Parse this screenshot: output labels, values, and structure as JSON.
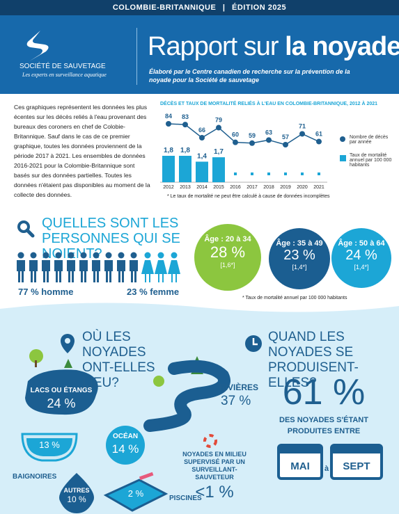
{
  "header": {
    "region": "COLOMBIE-BRITANNIQUE",
    "edition": "ÉDITION 2025"
  },
  "brand": {
    "name": "SOCIÉTÉ DE SAUVETAGE",
    "tagline": "Les experts en surveillance aquatique"
  },
  "title": {
    "lead": "Rapport sur",
    "emphasis": "la noyade",
    "subtitle": "Élaboré par le Centre canadien de recherche sur la prévention de la noyade pour la Société de sauvetage"
  },
  "intro": "Ces graphiques représentent les données les plus écentes sur les décès reliés à l'eau provenant des bureaux des coroners en chef de Colobie-Britannique. Sauf dans le cas de ce premier graphique, toutes les données proviennent de la période 2017 à 2021. Les ensembles de données 2016-2021 pour la Colombie-Britannique sont basés sur des données partielles. Toutes les données n'étaient pas disponibles au moment de la collecte des données.",
  "chart": {
    "title": "DÉCÈS ET TAUX DE MORTALITÉ RELIÉS À L'EAU EN COLOMBIE-BRITANNIQUE, 2012 À 2021",
    "categories": [
      "2012",
      "2013",
      "2014",
      "2015",
      "2016",
      "2017",
      "2018",
      "2019",
      "2020",
      "2021"
    ],
    "series": [
      {
        "name": "Nombre de décès par année",
        "color": "#1f5f8f",
        "values": [
          84,
          83,
          66,
          79,
          60,
          59,
          63,
          57,
          71,
          61
        ]
      },
      {
        "name": "Taux de mortalité annuel par 100 000 habitants",
        "color": "#1ca6d6",
        "values": [
          1.8,
          1.8,
          1.4,
          1.7,
          null,
          null,
          null,
          null,
          null,
          null
        ],
        "value_labels": [
          "1,8",
          "1,8",
          "1,4",
          "1,7",
          null,
          null,
          null,
          null,
          null,
          null
        ]
      }
    ],
    "note": "* Le taux de mortalité ne peut être calculé à cause de données incomplètes"
  },
  "who": {
    "title": "QUELLES SONT LES PERSONNES QUI SE NOIENT?",
    "male": "77 % homme",
    "female": "23 % femme",
    "ages": [
      {
        "label": "Âge : 20 à 34",
        "share": "28 %",
        "rate": "[1,6*]"
      },
      {
        "label": "Âge : 35 à 49",
        "share": "23 %",
        "rate": "[1,4*]"
      },
      {
        "label": "Âge : 50 à 64",
        "share": "24 %",
        "rate": "[1,4*]"
      }
    ],
    "note": "* Taux de mortalité annuel par 100 000 habitants"
  },
  "where": {
    "title": "OÙ LES NOYADES ONT-ELLES LIEU?",
    "lakes": {
      "label": "LACS OU ÉTANGS",
      "share": "24 %"
    },
    "rivers": {
      "label": "RIVIÈRES",
      "share": "37 %"
    },
    "ocean": {
      "label": "OCÉAN",
      "share": "14 %"
    },
    "bathtubs": {
      "label": "BAIGNOIRES",
      "share": "13 %"
    },
    "other": {
      "label": "AUTRES",
      "share": "10 %"
    },
    "pools": {
      "label": "PISCINES",
      "share": "2 %"
    },
    "supervised": {
      "label": "NOYADES EN MILIEU SUPERVISÉ PAR UN SURVEILLANT-SAUVETEUR",
      "share": "<1 %"
    }
  },
  "when": {
    "title": "QUAND LES NOYADES SE PRODUISENT-ELLES?",
    "share": "61 %",
    "text": "DES NOYADES S'ÉTANT PRODUITES ENTRE",
    "from": "MAI",
    "joiner": "à",
    "to": "SEPT"
  }
}
